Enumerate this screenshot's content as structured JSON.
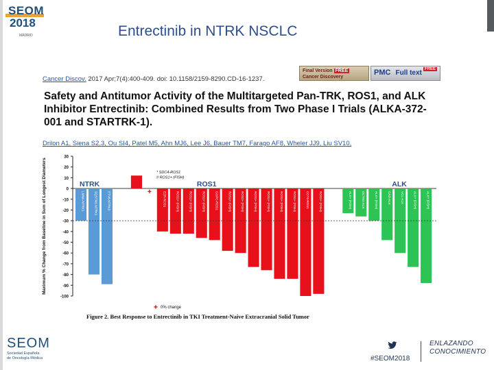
{
  "slide": {
    "title": "Entrectinib in NTRK NSCLC",
    "logo_top": {
      "word": "SEOM",
      "year": "2018",
      "city": "MADRID"
    },
    "logo_bottom": {
      "word": "SEOM",
      "line1": "Sociedad Española",
      "line2": "de Oncología Médica"
    },
    "hashtag": "#SEOM2018",
    "tagline_1": "ENLAZANDO",
    "tagline_2": "CONOCIMIENTO",
    "colors": {
      "title": "#2e4d8e",
      "logo": "#1f4f7a",
      "accent": "#e8a43a"
    }
  },
  "article": {
    "journal": "Cancer Discov.",
    "citation": " 2017 Apr;7(4):400-409. doi: 10.1158/2159-8290.CD-16-1237.",
    "title": "Safety and Antitumor Activity of the Multitargeted Pan-TRK, ROS1, and ALK Inhibitor Entrectinib: Combined Results from Two Phase I Trials (ALKA-372-001 and STARTRK-1).",
    "authors": "Drilon A1, Siena S2,3, Ou SI4, Patel M5, Ahn MJ6, Lee J6, Bauer TM7, Farago AF8, Wheler JJ9, Liu SV10,",
    "button_final": {
      "line1": "Final Version",
      "free": "FREE",
      "line2": "Cancer Discovery"
    },
    "button_pmc": {
      "label": "PMC",
      "free": "FREE",
      "sub": "Full text"
    },
    "figure_caption": "Figure 2. Best Response to Entrectinib in TKI Treatment-Naive Extracranial Solid Tumor"
  },
  "chart_data": {
    "type": "bar",
    "title": "",
    "ylabel": "Maximum % Change from Baseline in Sum of Longest Diameters",
    "ylim": [
      -100,
      30
    ],
    "yticks": [
      30,
      20,
      10,
      0,
      -10,
      -20,
      -30,
      -40,
      -50,
      -60,
      -70,
      -80,
      -90,
      -100
    ],
    "reference_line": -30,
    "groups": [
      {
        "name": "NTRK",
        "color": "#5b9bd5",
        "bars": [
          {
            "label": "LMNA-NTRK1",
            "value": -30
          },
          {
            "label": "SQSTM1-NTRK1",
            "value": -80
          },
          {
            "label": "ETV6-NTRK3",
            "value": -89
          }
        ]
      },
      {
        "name": "ROS1",
        "color": "#e8101a",
        "bars": [
          {
            "label": "SDC4-ROS1",
            "value": 12
          },
          {
            "label": "ROS1+ (FISH)",
            "value": 0,
            "marker": "0% change"
          },
          {
            "label": "EZR-ROS1",
            "value": -40
          },
          {
            "label": "ROS1+ (FISH)",
            "value": -42
          },
          {
            "label": "ROS1+ (FISH)",
            "value": -42
          },
          {
            "label": "ROS1+ (FISH)",
            "value": -46
          },
          {
            "label": "GOPC-ROS1",
            "value": -48
          },
          {
            "label": "ROS1+ (FISH)",
            "value": -58
          },
          {
            "label": "ROS1+ (FISH)",
            "value": -60
          },
          {
            "label": "ROS1+ (FISH)",
            "value": -73
          },
          {
            "label": "ROS1+ (FISH)",
            "value": -76
          },
          {
            "label": "ROS1+ (FISH)",
            "value": -84
          },
          {
            "label": "ROS1+ (FISH)",
            "value": -84
          },
          {
            "label": "CD74-ROS1",
            "value": -100
          },
          {
            "label": "ROS1+ (FISH)",
            "value": -98
          }
        ]
      },
      {
        "name": "ALK",
        "color": "#2ec455",
        "bars": [
          {
            "label": "ALK+ (FISH)",
            "value": -23
          },
          {
            "label": "DCTN1-ALK",
            "value": -26
          },
          {
            "label": "ALK+ (FISH)",
            "value": -30
          },
          {
            "label": "CAD-ALK",
            "value": -48
          },
          {
            "label": "VCL-ALK",
            "value": -60
          },
          {
            "label": "ALK+ (FISH)",
            "value": -73
          },
          {
            "label": "ALK+ (FISH)",
            "value": -88
          }
        ]
      }
    ],
    "legend": [
      {
        "symbol": "*",
        "label": "SDC4-ROS1"
      },
      {
        "symbol": "#",
        "label": "ROS1+ (FISH)"
      }
    ],
    "bottom_legend": "0% change"
  }
}
